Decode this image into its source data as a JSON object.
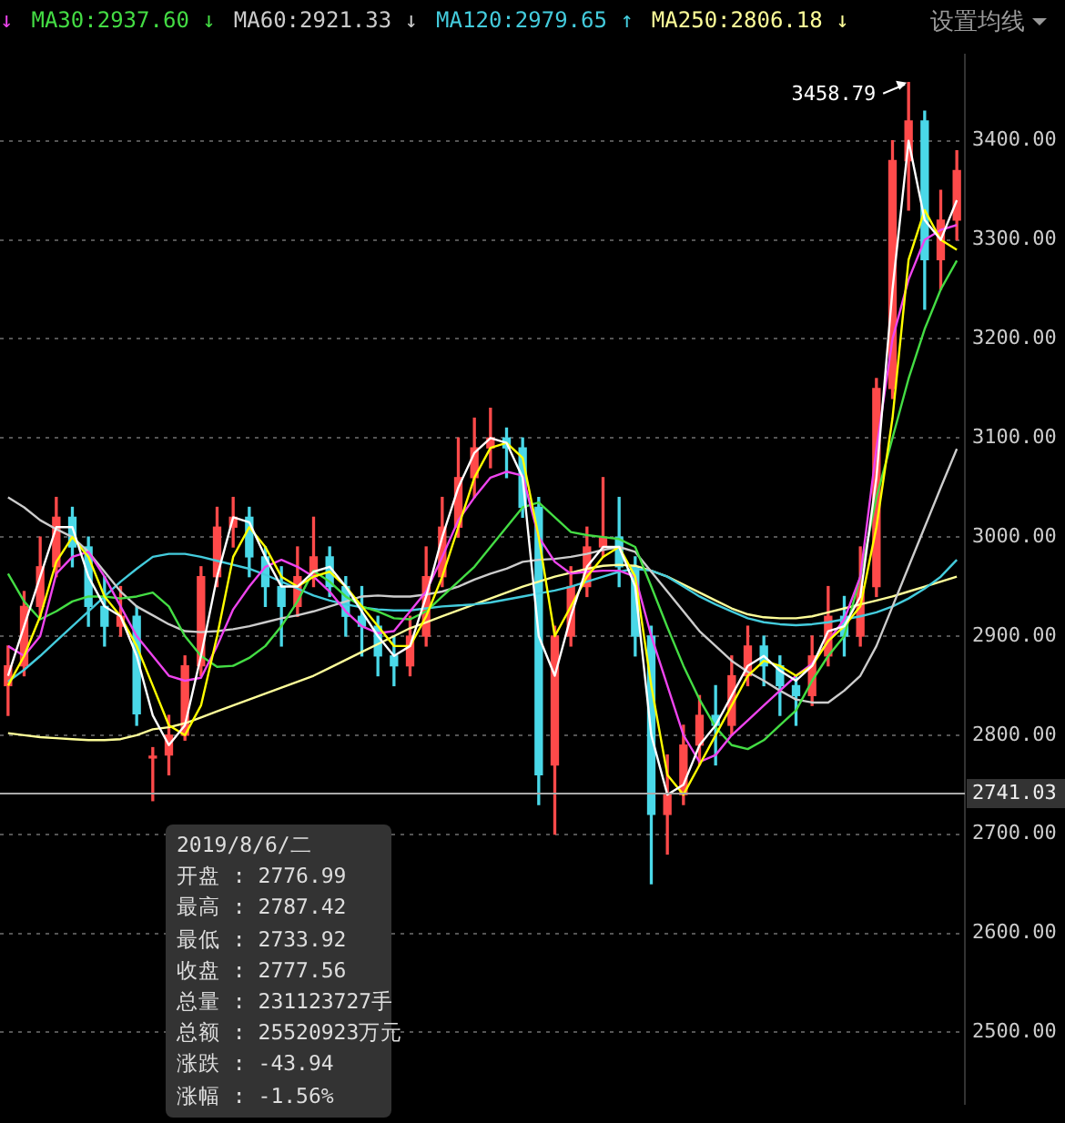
{
  "chart_data": {
    "type": "candlestick",
    "categories": [
      null,
      null,
      null,
      null,
      null,
      null,
      null,
      null,
      null,
      null,
      null,
      null,
      null,
      null,
      null,
      null,
      null,
      null,
      null,
      null,
      null,
      null,
      null,
      null,
      null,
      null,
      null,
      null,
      null,
      null,
      null,
      null,
      null,
      null,
      null,
      null,
      null,
      null,
      null,
      null,
      null,
      null,
      null,
      null,
      null,
      null,
      null,
      null,
      null,
      null,
      null,
      null,
      null,
      null,
      null,
      null,
      null,
      null,
      null,
      null
    ],
    "ohlc": [
      [
        2850,
        2890,
        2820,
        2870
      ],
      [
        2870,
        2945,
        2860,
        2930
      ],
      [
        2930,
        3000,
        2920,
        2970
      ],
      [
        2970,
        3040,
        2960,
        3020
      ],
      [
        3020,
        3030,
        2970,
        2990
      ],
      [
        2990,
        3000,
        2910,
        2930
      ],
      [
        2930,
        2960,
        2890,
        2910
      ],
      [
        2910,
        2950,
        2900,
        2920
      ],
      [
        2920,
        2930,
        2810,
        2821.5
      ],
      [
        2776.99,
        2787.42,
        2733.92,
        2777.56
      ],
      [
        2780,
        2820,
        2760,
        2800
      ],
      [
        2800,
        2880,
        2795,
        2870
      ],
      [
        2870,
        2970,
        2860,
        2960
      ],
      [
        2960,
        3030,
        2950,
        3010
      ],
      [
        3010,
        3040,
        2990,
        3020
      ],
      [
        3020,
        3030,
        2960,
        2980
      ],
      [
        2980,
        2990,
        2930,
        2950
      ],
      [
        2950,
        2970,
        2890,
        2930
      ],
      [
        2930,
        2990,
        2920,
        2960
      ],
      [
        2960,
        3020,
        2950,
        2980
      ],
      [
        2980,
        2990,
        2940,
        2950
      ],
      [
        2950,
        2960,
        2900,
        2920
      ],
      [
        2920,
        2950,
        2880,
        2910
      ],
      [
        2910,
        2920,
        2860,
        2880
      ],
      [
        2880,
        2900,
        2850,
        2870
      ],
      [
        2870,
        2920,
        2860,
        2900
      ],
      [
        2900,
        2990,
        2890,
        2960
      ],
      [
        2960,
        3040,
        2950,
        3010
      ],
      [
        3010,
        3100,
        3000,
        3060
      ],
      [
        3060,
        3120,
        3040,
        3090
      ],
      [
        3090,
        3130,
        3070,
        3100
      ],
      [
        3100,
        3110,
        3060,
        3090
      ],
      [
        3090,
        3100,
        3020,
        3030
      ],
      [
        3030,
        3040,
        2730,
        2760
      ],
      [
        2770,
        2910,
        2700,
        2900
      ],
      [
        2900,
        2970,
        2890,
        2950
      ],
      [
        2950,
        3010,
        2940,
        2990
      ],
      [
        2990,
        3060,
        2980,
        3000
      ],
      [
        3000,
        3040,
        2950,
        2970
      ],
      [
        2970,
        2980,
        2880,
        2900
      ],
      [
        2900,
        2910,
        2650,
        2720
      ],
      [
        2720,
        2780,
        2680,
        2740
      ],
      [
        2740,
        2810,
        2730,
        2790
      ],
      [
        2790,
        2840,
        2770,
        2820
      ],
      [
        2820,
        2850,
        2770,
        2810
      ],
      [
        2810,
        2880,
        2800,
        2860
      ],
      [
        2860,
        2910,
        2850,
        2890
      ],
      [
        2890,
        2900,
        2850,
        2870
      ],
      [
        2870,
        2880,
        2820,
        2850
      ],
      [
        2850,
        2860,
        2810,
        2840
      ],
      [
        2840,
        2900,
        2830,
        2880
      ],
      [
        2880,
        2950,
        2870,
        2920
      ],
      [
        2920,
        2940,
        2880,
        2900
      ],
      [
        2900,
        2990,
        2890,
        2950
      ],
      [
        2950,
        3160,
        2940,
        3150
      ],
      [
        3150,
        3400,
        3140,
        3380
      ],
      [
        3380,
        3458.79,
        3330,
        3420
      ],
      [
        3420,
        3430,
        3230,
        3280
      ],
      [
        3280,
        3350,
        3250,
        3320
      ],
      [
        3320,
        3390,
        3300,
        3370
      ]
    ],
    "colors": [
      "#ff4a4a",
      "#ff4a4a",
      "#ff4a4a",
      "#ff4a4a",
      "#4ad8e8",
      "#4ad8e8",
      "#4ad8e8",
      "#ff4a4a",
      "#4ad8e8",
      "#ff4a4a",
      "#ff4a4a",
      "#ff4a4a",
      "#ff4a4a",
      "#ff4a4a",
      "#ff4a4a",
      "#4ad8e8",
      "#4ad8e8",
      "#4ad8e8",
      "#ff4a4a",
      "#ff4a4a",
      "#4ad8e8",
      "#4ad8e8",
      "#4ad8e8",
      "#4ad8e8",
      "#4ad8e8",
      "#ff4a4a",
      "#ff4a4a",
      "#ff4a4a",
      "#ff4a4a",
      "#ff4a4a",
      "#ff4a4a",
      "#4ad8e8",
      "#4ad8e8",
      "#4ad8e8",
      "#ff4a4a",
      "#ff4a4a",
      "#ff4a4a",
      "#ff4a4a",
      "#4ad8e8",
      "#4ad8e8",
      "#4ad8e8",
      "#ff4a4a",
      "#ff4a4a",
      "#ff4a4a",
      "#4ad8e8",
      "#ff4a4a",
      "#ff4a4a",
      "#4ad8e8",
      "#4ad8e8",
      "#4ad8e8",
      "#ff4a4a",
      "#ff4a4a",
      "#4ad8e8",
      "#ff4a4a",
      "#ff4a4a",
      "#ff4a4a",
      "#ff4a4a",
      "#4ad8e8",
      "#ff4a4a",
      "#ff4a4a"
    ],
    "series": [
      {
        "type": "line",
        "color": "#ffffff",
        "values": [
          2860,
          2910,
          2960,
          3010,
          3010,
          2960,
          2930,
          2920,
          2880,
          2820,
          2790,
          2810,
          2880,
          2960,
          3020,
          3015,
          2980,
          2950,
          2950,
          2965,
          2970,
          2950,
          2925,
          2900,
          2880,
          2890,
          2940,
          3000,
          3050,
          3085,
          3100,
          3095,
          3060,
          2900,
          2860,
          2920,
          2970,
          2990,
          2990,
          2950,
          2800,
          2740,
          2750,
          2790,
          2810,
          2840,
          2870,
          2880,
          2865,
          2855,
          2870,
          2905,
          2910,
          2940,
          3060,
          3250,
          3400,
          3320,
          3300,
          3340
        ]
      },
      {
        "type": "line",
        "color": "#ffff00",
        "values": [
          2850,
          2880,
          2920,
          2975,
          3000,
          2980,
          2940,
          2920,
          2890,
          2850,
          2810,
          2800,
          2830,
          2900,
          2980,
          3010,
          2990,
          2960,
          2950,
          2960,
          2965,
          2950,
          2930,
          2910,
          2890,
          2890,
          2920,
          2960,
          3010,
          3060,
          3090,
          3095,
          3080,
          3000,
          2900,
          2930,
          2960,
          2980,
          2990,
          2960,
          2850,
          2760,
          2740,
          2770,
          2800,
          2830,
          2860,
          2875,
          2870,
          2860,
          2870,
          2895,
          2910,
          2930,
          3010,
          3120,
          3280,
          3330,
          3300,
          3290
        ]
      },
      {
        "type": "line",
        "name": "↓",
        "color": "#ee44ee",
        "values": [
          2890,
          2880,
          2900,
          2963,
          2980,
          2985,
          2960,
          2930,
          2900,
          2880,
          2860,
          2855,
          2858,
          2890,
          2927,
          2950,
          2970,
          2977,
          2970,
          2960,
          2945,
          2925,
          2910,
          2903,
          2905,
          2925,
          2945,
          2980,
          3017,
          3040,
          3060,
          3066,
          3062,
          3000,
          2975,
          2963,
          2965,
          2966,
          2966,
          2960,
          2900,
          2850,
          2800,
          2773,
          2780,
          2800,
          2815,
          2830,
          2845,
          2860,
          2872,
          2895,
          2917,
          2960,
          3089,
          3200,
          3260,
          3300,
          3310,
          3315
        ]
      },
      {
        "type": "line",
        "name": "MA30:2937.60 ↓",
        "color": "#44dd44",
        "values": [
          2963,
          2935,
          2917,
          2925,
          2935,
          2940,
          2940,
          2938,
          2940,
          2944,
          2930,
          2900,
          2880,
          2869,
          2870,
          2878,
          2890,
          2910,
          2935,
          2966,
          2955,
          2940,
          2930,
          2925,
          2918,
          2917,
          2925,
          2940,
          2955,
          2970,
          2990,
          3010,
          3030,
          3035,
          3020,
          3005,
          3002,
          3000,
          2998,
          2990,
          2950,
          2909,
          2870,
          2836,
          2808,
          2790,
          2786,
          2795,
          2810,
          2825,
          2855,
          2880,
          2900,
          2960,
          3040,
          3100,
          3160,
          3210,
          3250,
          3279
        ]
      },
      {
        "type": "line",
        "name": "MA60:2921.33 ↓",
        "color": "#cccccc",
        "values": [
          3040,
          3030,
          3017,
          3008,
          3000,
          2985,
          2965,
          2945,
          2930,
          2921,
          2912,
          2905,
          2904,
          2905,
          2907,
          2910,
          2914,
          2918,
          2921,
          2925,
          2930,
          2935,
          2940,
          2941,
          2940,
          2940,
          2942,
          2945,
          2950,
          2957,
          2963,
          2968,
          2975,
          2977,
          2978,
          2980,
          2983,
          2987,
          2990,
          2985,
          2965,
          2945,
          2925,
          2905,
          2890,
          2875,
          2864,
          2855,
          2845,
          2836,
          2833,
          2833,
          2845,
          2860,
          2890,
          2930,
          2970,
          3010,
          3050,
          3089
        ]
      },
      {
        "type": "line",
        "name": "MA120:2979.65 ↑",
        "color": "#44ccdd",
        "values": [
          2854,
          2866,
          2880,
          2895,
          2910,
          2925,
          2940,
          2955,
          2968,
          2980,
          2983,
          2983,
          2980,
          2976,
          2972,
          2968,
          2962,
          2955,
          2948,
          2941,
          2936,
          2932,
          2929,
          2927,
          2926,
          2926,
          2928,
          2930,
          2931,
          2932,
          2934,
          2937,
          2940,
          2943,
          2946,
          2950,
          2955,
          2960,
          2965,
          2968,
          2966,
          2960,
          2950,
          2940,
          2932,
          2925,
          2918,
          2914,
          2912,
          2911,
          2912,
          2914,
          2917,
          2920,
          2924,
          2930,
          2938,
          2948,
          2960,
          2977
        ]
      },
      {
        "type": "line",
        "name": "MA250:2806.18 ↓",
        "color": "#ffff99",
        "values": [
          2802,
          2800,
          2798,
          2797,
          2796,
          2795,
          2795,
          2796,
          2800,
          2806,
          2808,
          2812,
          2818,
          2824,
          2830,
          2836,
          2842,
          2848,
          2854,
          2860,
          2868,
          2876,
          2884,
          2892,
          2900,
          2908,
          2914,
          2920,
          2926,
          2932,
          2938,
          2944,
          2950,
          2955,
          2960,
          2964,
          2968,
          2971,
          2972,
          2971,
          2966,
          2960,
          2952,
          2944,
          2936,
          2928,
          2922,
          2919,
          2918,
          2918,
          2920,
          2924,
          2928,
          2932,
          2936,
          2940,
          2945,
          2950,
          2955,
          2960
        ]
      }
    ],
    "ylim": [
      2428,
      3487
    ],
    "yticks": [
      {
        "value": 2500,
        "label": "2500.00"
      },
      {
        "value": 2600,
        "label": "2600.00"
      },
      {
        "value": 2700,
        "label": "2700.00"
      },
      {
        "value": 2800,
        "label": "2800.00"
      },
      {
        "value": 2900,
        "label": "2900.00"
      },
      {
        "value": 3000,
        "label": "3000.00"
      },
      {
        "value": 3100,
        "label": "3100.00"
      },
      {
        "value": 3200,
        "label": "3200.00"
      },
      {
        "value": 3300,
        "label": "3300.00"
      },
      {
        "value": 3400,
        "label": "3400.00"
      }
    ],
    "ref_lines": [
      {
        "axis": "y",
        "value": 2741.03,
        "label": "2741.03",
        "color": "#aaaaaa"
      }
    ],
    "annotations": [
      "3458.79",
      "设置均线",
      "2019/8/6/二",
      "开盘 : 2776.99",
      "最高 : 2787.42",
      "最低 : 2733.92",
      "收盘 : 2777.56",
      "总量 : 231123727手",
      "总额 : 25520923万元",
      "涨跌 : -43.94",
      "涨幅 : -1.56%"
    ],
    "grid": "y",
    "legend": "top left",
    "tick_labels": "y",
    "line_style": "solid",
    "marker": "none"
  }
}
